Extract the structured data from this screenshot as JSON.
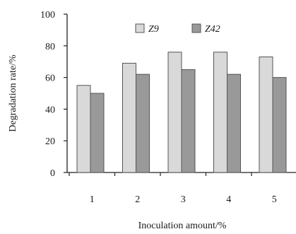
{
  "chart_data": {
    "type": "bar",
    "categories": [
      "1",
      "2",
      "3",
      "4",
      "5"
    ],
    "series": [
      {
        "name": "Z9",
        "values": [
          55,
          69,
          76,
          76,
          73
        ],
        "color": "#d9d9d9"
      },
      {
        "name": "Z42",
        "values": [
          50,
          62,
          65,
          62,
          60
        ],
        "color": "#999999"
      }
    ],
    "xlabel": "Inoculation amount/%",
    "ylabel": "Degradation rate/%",
    "ylim": [
      0,
      100
    ],
    "yticks": [
      0,
      20,
      40,
      60,
      80,
      100
    ],
    "legend_position": "top-right",
    "grid": false
  }
}
